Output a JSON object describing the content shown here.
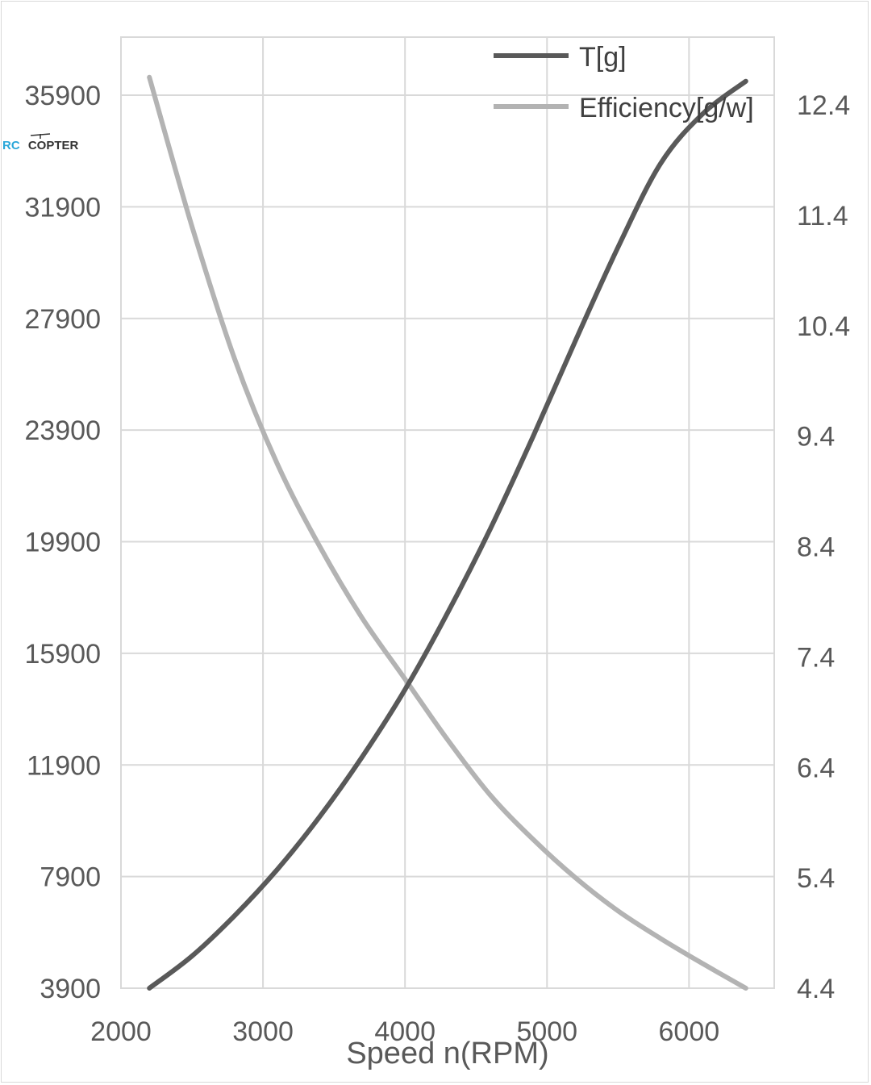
{
  "logo": {
    "text_rc": "RC",
    "text_copter": "COPTER",
    "rc_color": "#2aa7d9",
    "copter_color": "#333333"
  },
  "chart_data": {
    "type": "line",
    "xlabel": "Speed n(RPM)",
    "xlim": [
      2000,
      6600
    ],
    "x_ticks": [
      2000,
      3000,
      4000,
      5000,
      6000
    ],
    "y_left": {
      "lim": [
        3900,
        37900
      ],
      "ticks": [
        3900,
        7900,
        11900,
        15900,
        19900,
        23900,
        27900,
        31900,
        35900
      ]
    },
    "y_right": {
      "lim": [
        4.4,
        12.8
      ],
      "ticks": [
        4.4,
        5.4,
        6.4,
        7.4,
        8.4,
        9.4,
        10.4,
        11.4,
        12.4
      ]
    },
    "grid": true,
    "legend_position": "top-right",
    "series": [
      {
        "name": "T[g]",
        "axis": "left",
        "color": "#595959",
        "x": [
          2200,
          2500,
          2800,
          3100,
          3400,
          3700,
          4000,
          4300,
          4600,
          4900,
          5200,
          5500,
          5800,
          6100,
          6400
        ],
        "y": [
          3900,
          5050,
          6500,
          8150,
          10050,
          12200,
          14600,
          17350,
          20350,
          23650,
          27100,
          30450,
          33450,
          35250,
          36400
        ]
      },
      {
        "name": "Efficiency[g/w]",
        "axis": "right",
        "color": "#b3b3b3",
        "x": [
          2200,
          2500,
          2800,
          3100,
          3400,
          3700,
          4000,
          4300,
          4600,
          4900,
          5200,
          5500,
          5800,
          6100,
          6400
        ],
        "y": [
          12.65,
          11.3,
          10.1,
          9.15,
          8.4,
          7.75,
          7.2,
          6.65,
          6.15,
          5.75,
          5.4,
          5.1,
          4.85,
          4.62,
          4.4
        ]
      }
    ]
  }
}
